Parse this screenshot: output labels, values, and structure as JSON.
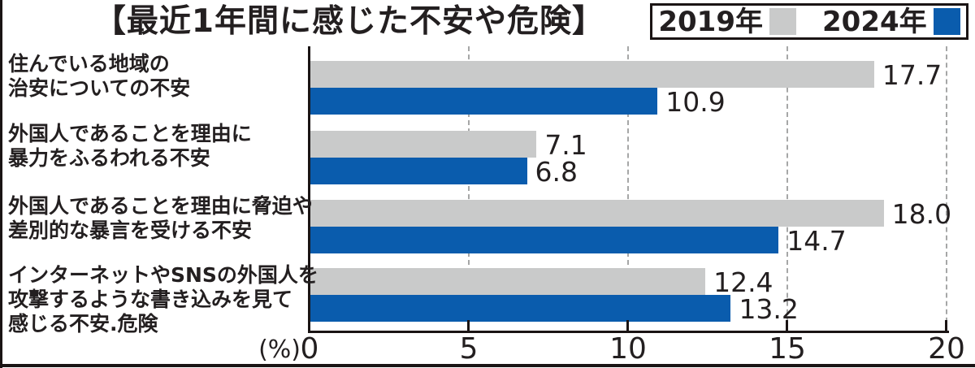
{
  "title": "【最近1年間に感じた不安や危険】",
  "legend": {
    "items": [
      {
        "label": "2019年",
        "color": "#c9caca"
      },
      {
        "label": "2024年",
        "color": "#0a5cad"
      }
    ]
  },
  "axis": {
    "unit_label": "(%)",
    "ticks": [
      0,
      5,
      10,
      15,
      20
    ],
    "max": 20
  },
  "colors": {
    "bar_2019": "#c9caca",
    "bar_2024": "#0a5cad",
    "ink": "#231f20",
    "frame": "#1a1414",
    "gridline": "#a6a7a7"
  },
  "chart_data": {
    "type": "bar",
    "orientation": "horizontal",
    "title": "【最近1年間に感じた不安や危険】",
    "xlabel": "(%)",
    "xlim": [
      0,
      20
    ],
    "grid": "dashed-vertical",
    "legend_position": "top-right",
    "categories": [
      [
        "住んでいる地域の",
        "治安についての不安"
      ],
      [
        "外国人であることを理由に",
        "暴力をふるわれる不安"
      ],
      [
        "外国人であることを理由に脅迫や",
        "差別的な暴言を受ける不安"
      ],
      [
        "インターネットやSNSの外国人を",
        "攻撃するような書き込みを見て",
        "感じる不安.危険"
      ]
    ],
    "series": [
      {
        "name": "2019年",
        "color": "#c9caca",
        "values": [
          17.7,
          7.1,
          18.0,
          12.4
        ],
        "labels": [
          "17.7",
          "7.1",
          "18.0",
          "12.4"
        ]
      },
      {
        "name": "2024年",
        "color": "#0a5cad",
        "values": [
          10.9,
          6.8,
          14.7,
          13.2
        ],
        "labels": [
          "10.9",
          "6.8",
          "14.7",
          "13.2"
        ]
      }
    ]
  }
}
